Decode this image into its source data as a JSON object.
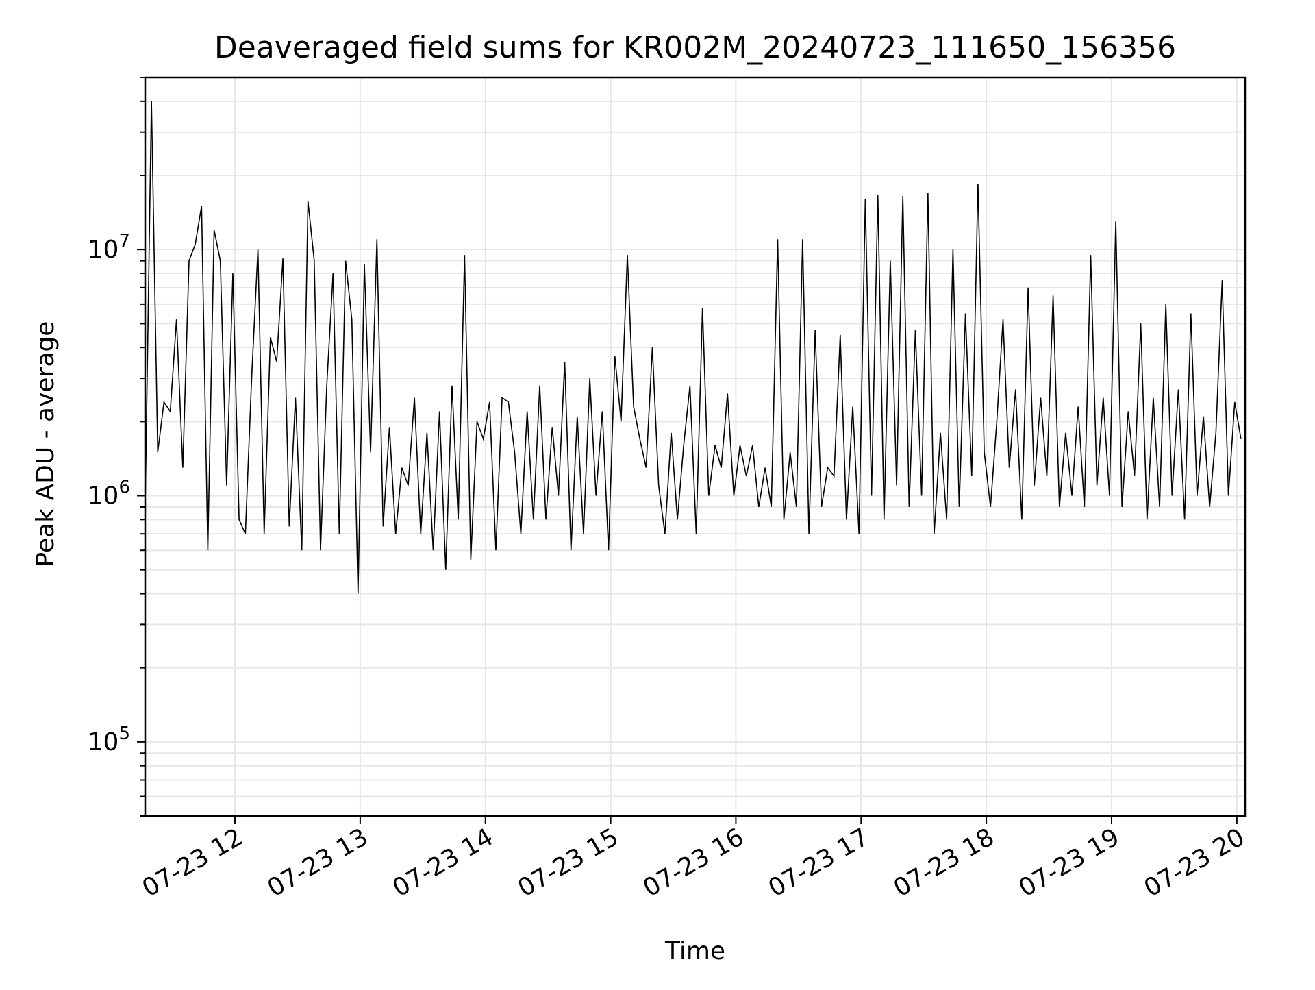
{
  "chart_data": {
    "type": "line",
    "title": "Deaveraged field sums for KR002M_20240723_111650_156356",
    "xlabel": "Time",
    "ylabel": "Peak ADU - average",
    "yscale": "log",
    "ylim": [
      50000,
      50000000
    ],
    "xlim": [
      "2024-07-23 11:17",
      "2024-07-23 20:04"
    ],
    "grid": true,
    "line_color": "#000000",
    "grid_color": "#e6e6e6",
    "x_ticks": [
      {
        "value": "2024-07-23 12:00",
        "label": "07-23 12"
      },
      {
        "value": "2024-07-23 13:00",
        "label": "07-23 13"
      },
      {
        "value": "2024-07-23 14:00",
        "label": "07-23 14"
      },
      {
        "value": "2024-07-23 15:00",
        "label": "07-23 15"
      },
      {
        "value": "2024-07-23 16:00",
        "label": "07-23 16"
      },
      {
        "value": "2024-07-23 17:00",
        "label": "07-23 17"
      },
      {
        "value": "2024-07-23 18:00",
        "label": "07-23 18"
      },
      {
        "value": "2024-07-23 19:00",
        "label": "07-23 19"
      },
      {
        "value": "2024-07-23 20:00",
        "label": "07-23 20"
      }
    ],
    "y_ticks": [
      {
        "value": 100000,
        "base": "10",
        "exp": "5"
      },
      {
        "value": 1000000,
        "base": "10",
        "exp": "6"
      },
      {
        "value": 10000000,
        "base": "10",
        "exp": "7"
      }
    ],
    "series": [
      {
        "x": [
          "2024-07-23 11:17",
          "2024-07-23 11:20",
          "2024-07-23 11:23",
          "2024-07-23 11:26",
          "2024-07-23 11:29",
          "2024-07-23 11:32",
          "2024-07-23 11:35",
          "2024-07-23 11:38",
          "2024-07-23 11:41",
          "2024-07-23 11:44",
          "2024-07-23 11:47",
          "2024-07-23 11:50",
          "2024-07-23 11:53",
          "2024-07-23 11:56",
          "2024-07-23 11:59",
          "2024-07-23 12:02",
          "2024-07-23 12:05",
          "2024-07-23 12:08",
          "2024-07-23 12:11",
          "2024-07-23 12:14",
          "2024-07-23 12:17",
          "2024-07-23 12:20",
          "2024-07-23 12:23",
          "2024-07-23 12:26",
          "2024-07-23 12:29",
          "2024-07-23 12:32",
          "2024-07-23 12:35",
          "2024-07-23 12:38",
          "2024-07-23 12:41",
          "2024-07-23 12:44",
          "2024-07-23 12:47",
          "2024-07-23 12:50",
          "2024-07-23 12:53",
          "2024-07-23 12:56",
          "2024-07-23 12:59",
          "2024-07-23 13:02",
          "2024-07-23 13:05",
          "2024-07-23 13:08",
          "2024-07-23 13:11",
          "2024-07-23 13:14",
          "2024-07-23 13:17",
          "2024-07-23 13:20",
          "2024-07-23 13:23",
          "2024-07-23 13:26",
          "2024-07-23 13:29",
          "2024-07-23 13:32",
          "2024-07-23 13:35",
          "2024-07-23 13:38",
          "2024-07-23 13:41",
          "2024-07-23 13:44",
          "2024-07-23 13:47",
          "2024-07-23 13:50",
          "2024-07-23 13:53",
          "2024-07-23 13:56",
          "2024-07-23 13:59",
          "2024-07-23 14:02",
          "2024-07-23 14:05",
          "2024-07-23 14:08",
          "2024-07-23 14:11",
          "2024-07-23 14:14",
          "2024-07-23 14:17",
          "2024-07-23 14:20",
          "2024-07-23 14:23",
          "2024-07-23 14:26",
          "2024-07-23 14:29",
          "2024-07-23 14:32",
          "2024-07-23 14:35",
          "2024-07-23 14:38",
          "2024-07-23 14:41",
          "2024-07-23 14:44",
          "2024-07-23 14:47",
          "2024-07-23 14:50",
          "2024-07-23 14:53",
          "2024-07-23 14:56",
          "2024-07-23 14:59",
          "2024-07-23 15:02",
          "2024-07-23 15:05",
          "2024-07-23 15:08",
          "2024-07-23 15:11",
          "2024-07-23 15:14",
          "2024-07-23 15:17",
          "2024-07-23 15:20",
          "2024-07-23 15:23",
          "2024-07-23 15:26",
          "2024-07-23 15:29",
          "2024-07-23 15:32",
          "2024-07-23 15:35",
          "2024-07-23 15:38",
          "2024-07-23 15:41",
          "2024-07-23 15:44",
          "2024-07-23 15:47",
          "2024-07-23 15:50",
          "2024-07-23 15:53",
          "2024-07-23 15:56",
          "2024-07-23 15:59",
          "2024-07-23 16:02",
          "2024-07-23 16:05",
          "2024-07-23 16:08",
          "2024-07-23 16:11",
          "2024-07-23 16:14",
          "2024-07-23 16:17",
          "2024-07-23 16:20",
          "2024-07-23 16:23",
          "2024-07-23 16:26",
          "2024-07-23 16:29",
          "2024-07-23 16:32",
          "2024-07-23 16:35",
          "2024-07-23 16:38",
          "2024-07-23 16:41",
          "2024-07-23 16:44",
          "2024-07-23 16:47",
          "2024-07-23 16:50",
          "2024-07-23 16:53",
          "2024-07-23 16:56",
          "2024-07-23 16:59",
          "2024-07-23 17:02",
          "2024-07-23 17:05",
          "2024-07-23 17:08",
          "2024-07-23 17:11",
          "2024-07-23 17:14",
          "2024-07-23 17:17",
          "2024-07-23 17:20",
          "2024-07-23 17:23",
          "2024-07-23 17:26",
          "2024-07-23 17:29",
          "2024-07-23 17:32",
          "2024-07-23 17:35",
          "2024-07-23 17:38",
          "2024-07-23 17:41",
          "2024-07-23 17:44",
          "2024-07-23 17:47",
          "2024-07-23 17:50",
          "2024-07-23 17:53",
          "2024-07-23 17:56",
          "2024-07-23 17:59",
          "2024-07-23 18:02",
          "2024-07-23 18:05",
          "2024-07-23 18:08",
          "2024-07-23 18:11",
          "2024-07-23 18:14",
          "2024-07-23 18:17",
          "2024-07-23 18:20",
          "2024-07-23 18:23",
          "2024-07-23 18:26",
          "2024-07-23 18:29",
          "2024-07-23 18:32",
          "2024-07-23 18:35",
          "2024-07-23 18:38",
          "2024-07-23 18:41",
          "2024-07-23 18:44",
          "2024-07-23 18:47",
          "2024-07-23 18:50",
          "2024-07-23 18:53",
          "2024-07-23 18:56",
          "2024-07-23 18:59",
          "2024-07-23 19:02",
          "2024-07-23 19:05",
          "2024-07-23 19:08",
          "2024-07-23 19:11",
          "2024-07-23 19:14",
          "2024-07-23 19:17",
          "2024-07-23 19:20",
          "2024-07-23 19:23",
          "2024-07-23 19:26",
          "2024-07-23 19:29",
          "2024-07-23 19:32",
          "2024-07-23 19:35",
          "2024-07-23 19:38",
          "2024-07-23 19:41",
          "2024-07-23 19:44",
          "2024-07-23 19:47",
          "2024-07-23 19:50",
          "2024-07-23 19:53",
          "2024-07-23 19:56",
          "2024-07-23 19:59",
          "2024-07-23 20:02"
        ],
        "y": [
          900000,
          40000000,
          1500000,
          2400000,
          2200000,
          5200000,
          1300000,
          9000000,
          10500000,
          15000000,
          600000,
          12000000,
          9000000,
          1100000,
          8000000,
          800000,
          700000,
          3000000,
          10000000,
          700000,
          4400000,
          3500000,
          9200000,
          750000,
          2500000,
          600000,
          15700000,
          9000000,
          600000,
          2800000,
          8000000,
          700000,
          9000000,
          5200000,
          400000,
          8700000,
          1500000,
          11000000,
          750000,
          1900000,
          700000,
          1300000,
          1100000,
          2500000,
          700000,
          1800000,
          600000,
          2200000,
          500000,
          2800000,
          800000,
          9500000,
          550000,
          2000000,
          1700000,
          2400000,
          600000,
          2500000,
          2400000,
          1500000,
          700000,
          2200000,
          800000,
          2800000,
          800000,
          1900000,
          1000000,
          3500000,
          600000,
          2100000,
          700000,
          3000000,
          1000000,
          2200000,
          600000,
          3700000,
          2000000,
          9500000,
          2300000,
          1700000,
          1300000,
          4000000,
          1100000,
          700000,
          1800000,
          800000,
          1600000,
          2800000,
          700000,
          5800000,
          1000000,
          1600000,
          1300000,
          2600000,
          1000000,
          1600000,
          1200000,
          1600000,
          900000,
          1300000,
          900000,
          11000000,
          800000,
          1500000,
          900000,
          11000000,
          700000,
          4700000,
          900000,
          1300000,
          1200000,
          4500000,
          800000,
          2300000,
          700000,
          16000000,
          1000000,
          16700000,
          800000,
          9000000,
          1100000,
          16500000,
          900000,
          4700000,
          1000000,
          17000000,
          700000,
          1800000,
          800000,
          10000000,
          900000,
          5500000,
          1200000,
          18500000,
          1500000,
          900000,
          2000000,
          5200000,
          1300000,
          2700000,
          800000,
          7000000,
          1100000,
          2500000,
          1200000,
          6500000,
          900000,
          1800000,
          1000000,
          2300000,
          900000,
          9500000,
          1100000,
          2500000,
          1000000,
          13000000,
          900000,
          2200000,
          1200000,
          5000000,
          800000,
          2500000,
          900000,
          6000000,
          1000000,
          2700000,
          800000,
          5500000,
          1000000,
          2100000,
          900000,
          1800000,
          7500000,
          1000000,
          2400000,
          1700000
        ]
      }
    ]
  }
}
